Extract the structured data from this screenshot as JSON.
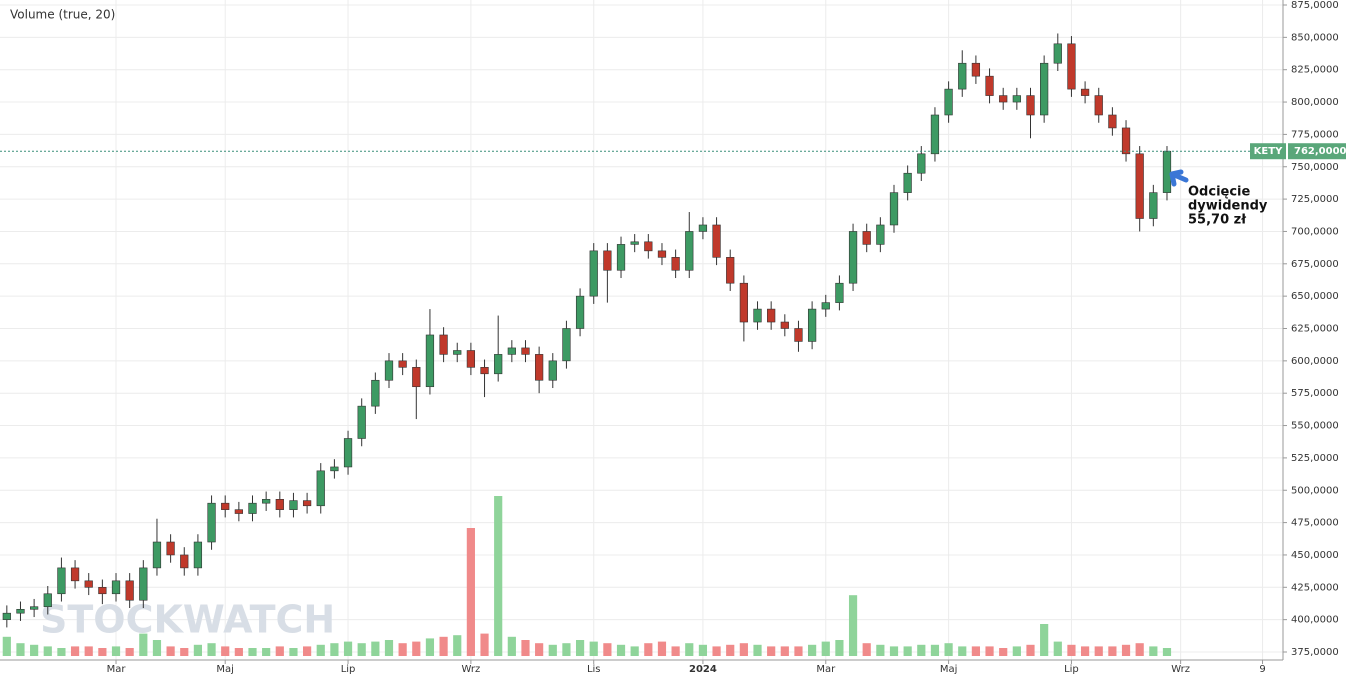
{
  "chart_data": {
    "type": "candlestick",
    "ticker": "KETY",
    "volume_label": "Volume (true, 20)",
    "watermark": "STOCKWATCH",
    "annotation": [
      "Odcięcie",
      "dywidendy",
      "55,70 zł"
    ],
    "last_price": {
      "value": 762,
      "label": "762,0000"
    },
    "categories": [
      null,
      null,
      null,
      null,
      null,
      null,
      null,
      null,
      "Mar",
      null,
      null,
      null,
      null,
      null,
      null,
      null,
      "Maj",
      null,
      null,
      null,
      null,
      null,
      null,
      null,
      null,
      "Lip",
      null,
      null,
      null,
      null,
      null,
      null,
      null,
      null,
      "Wrz",
      null,
      null,
      null,
      null,
      null,
      null,
      null,
      null,
      "Lis",
      null,
      null,
      null,
      null,
      null,
      null,
      null,
      "2024",
      null,
      null,
      null,
      null,
      null,
      null,
      null,
      null,
      "Mar",
      null,
      null,
      null,
      null,
      null,
      null,
      null,
      null,
      "Maj",
      null,
      null,
      null,
      null,
      null,
      null,
      null,
      null,
      "Lip",
      null,
      null,
      null,
      null,
      null,
      null,
      null,
      "Wrz",
      null,
      null,
      null,
      null,
      null,
      "9",
      null
    ],
    "open": [
      400,
      405,
      408,
      410,
      420,
      440,
      430,
      425,
      420,
      430,
      415,
      440,
      460,
      450,
      440,
      460,
      490,
      485,
      482,
      490,
      493,
      485,
      492,
      488,
      515,
      518,
      540,
      565,
      585,
      600,
      595,
      580,
      620,
      605,
      608,
      595,
      590,
      605,
      610,
      605,
      585,
      600,
      625,
      650,
      685,
      670,
      690,
      692,
      685,
      680,
      670,
      700,
      705,
      680,
      660,
      630,
      640,
      630,
      625,
      615,
      640,
      645,
      660,
      700,
      690,
      705,
      730,
      745,
      760,
      790,
      810,
      830,
      820,
      805,
      800,
      805,
      790,
      830,
      845,
      810,
      805,
      790,
      780,
      760,
      710,
      730,
      null,
      null,
      null,
      null,
      null,
      null,
      null,
      null
    ],
    "high": [
      411,
      414,
      416,
      426,
      448,
      446,
      436,
      431,
      436,
      436,
      446,
      478,
      466,
      456,
      466,
      496,
      496,
      491,
      496,
      499,
      499,
      498,
      498,
      521,
      524,
      546,
      571,
      591,
      606,
      606,
      601,
      640,
      626,
      614,
      614,
      601,
      635,
      616,
      616,
      611,
      606,
      631,
      656,
      691,
      691,
      696,
      698,
      698,
      691,
      686,
      715,
      711,
      711,
      686,
      666,
      646,
      646,
      636,
      631,
      646,
      651,
      666,
      706,
      706,
      711,
      736,
      751,
      766,
      796,
      816,
      840,
      836,
      826,
      811,
      811,
      811,
      836,
      853,
      851,
      816,
      811,
      796,
      786,
      766,
      736,
      766,
      null,
      null,
      null,
      null,
      null,
      null,
      null,
      null
    ],
    "low": [
      394,
      399,
      402,
      404,
      414,
      424,
      419,
      412,
      414,
      409,
      409,
      434,
      444,
      434,
      434,
      454,
      479,
      476,
      476,
      484,
      479,
      479,
      482,
      482,
      509,
      512,
      534,
      559,
      579,
      589,
      555,
      574,
      599,
      599,
      589,
      572,
      584,
      599,
      599,
      575,
      579,
      594,
      619,
      644,
      645,
      664,
      684,
      679,
      674,
      664,
      664,
      694,
      674,
      654,
      615,
      624,
      624,
      619,
      607,
      609,
      634,
      639,
      654,
      684,
      684,
      699,
      724,
      739,
      754,
      784,
      804,
      814,
      799,
      794,
      794,
      772,
      784,
      824,
      804,
      799,
      784,
      774,
      754,
      700,
      704,
      724,
      null,
      null,
      null,
      null,
      null,
      null,
      null,
      null
    ],
    "close": [
      405,
      408,
      410,
      420,
      440,
      430,
      425,
      420,
      430,
      415,
      440,
      460,
      450,
      440,
      460,
      490,
      485,
      482,
      490,
      493,
      485,
      492,
      488,
      515,
      518,
      540,
      565,
      585,
      600,
      595,
      580,
      620,
      605,
      608,
      595,
      590,
      605,
      610,
      605,
      585,
      600,
      625,
      650,
      685,
      670,
      690,
      692,
      685,
      680,
      670,
      700,
      705,
      680,
      660,
      630,
      640,
      630,
      625,
      615,
      640,
      645,
      660,
      700,
      690,
      705,
      730,
      745,
      760,
      790,
      810,
      830,
      820,
      805,
      800,
      805,
      790,
      830,
      845,
      810,
      805,
      790,
      780,
      760,
      710,
      730,
      762,
      null,
      null,
      null,
      null,
      null,
      null,
      null,
      null
    ],
    "volume": [
      12,
      8,
      7,
      6,
      5,
      6,
      6,
      5,
      6,
      5,
      14,
      10,
      6,
      5,
      7,
      8,
      6,
      5,
      5,
      5,
      6,
      5,
      6,
      7,
      8,
      9,
      8,
      9,
      10,
      8,
      9,
      11,
      12,
      13,
      80,
      14,
      100,
      12,
      10,
      8,
      7,
      8,
      10,
      9,
      8,
      7,
      6,
      8,
      9,
      6,
      8,
      7,
      6,
      7,
      8,
      7,
      6,
      6,
      6,
      7,
      9,
      10,
      38,
      8,
      7,
      6,
      6,
      7,
      7,
      8,
      6,
      6,
      6,
      5,
      6,
      7,
      20,
      9,
      7,
      6,
      6,
      6,
      7,
      8,
      6,
      5,
      null,
      null,
      null,
      null,
      null,
      null,
      null,
      null
    ],
    "vlim": [
      0,
      100
    ],
    "up_color": "#3d9a63",
    "down_color": "#c0392b",
    "vol_up_color": "#8fd49a",
    "vol_down_color": "#f08a8a",
    "ylim": [
      375,
      875
    ],
    "yticks": [
      {
        "value": 375,
        "label": "375,0000"
      },
      {
        "value": 400,
        "label": "400,0000"
      },
      {
        "value": 425,
        "label": "425,0000"
      },
      {
        "value": 450,
        "label": "450,0000"
      },
      {
        "value": 475,
        "label": "475,0000"
      },
      {
        "value": 500,
        "label": "500,0000"
      },
      {
        "value": 525,
        "label": "525,0000"
      },
      {
        "value": 550,
        "label": "550,0000"
      },
      {
        "value": 575,
        "label": "575,0000"
      },
      {
        "value": 600,
        "label": "600,0000"
      },
      {
        "value": 625,
        "label": "625,0000"
      },
      {
        "value": 650,
        "label": "650,0000"
      },
      {
        "value": 675,
        "label": "675,0000"
      },
      {
        "value": 700,
        "label": "700,0000"
      },
      {
        "value": 725,
        "label": "725,0000"
      },
      {
        "value": 750,
        "label": "750,0000"
      },
      {
        "value": 775,
        "label": "775,0000"
      },
      {
        "value": 800,
        "label": "800,0000"
      },
      {
        "value": 825,
        "label": "825,0000"
      },
      {
        "value": 850,
        "label": "850,0000"
      },
      {
        "value": 875,
        "label": "875,0000"
      }
    ],
    "grid": true
  }
}
